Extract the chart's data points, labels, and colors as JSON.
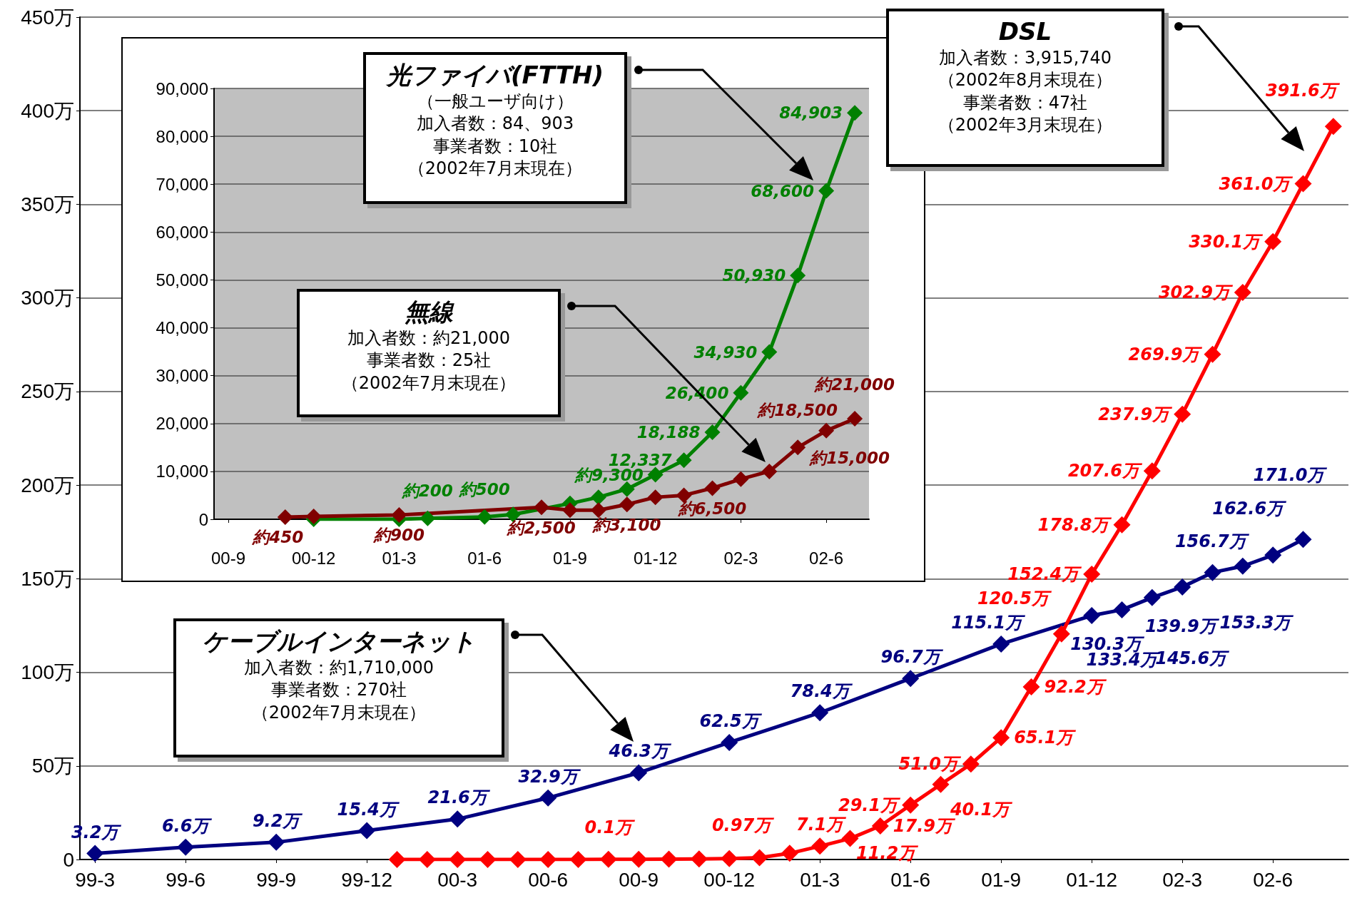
{
  "chart_data": [
    {
      "type": "line",
      "categories": [
        "99-3",
        null,
        null,
        "99-6",
        null,
        null,
        "99-9",
        null,
        null,
        "99-12",
        null,
        null,
        "00-3",
        null,
        null,
        "00-6",
        null,
        null,
        "00-9",
        null,
        null,
        "00-12",
        null,
        null,
        "01-3",
        null,
        null,
        "01-6",
        null,
        null,
        "01-9",
        null,
        null,
        "01-12",
        null,
        null,
        "02-3",
        null,
        null,
        "02-6",
        null,
        null
      ],
      "series": [
        {
          "color": "#000080",
          "values": [
            3.2,
            null,
            null,
            6.6,
            null,
            null,
            9.2,
            null,
            null,
            15.4,
            null,
            null,
            21.6,
            null,
            null,
            32.9,
            null,
            null,
            46.3,
            null,
            null,
            62.5,
            null,
            null,
            78.4,
            null,
            null,
            96.7,
            null,
            null,
            115.1,
            null,
            null,
            130.3,
            133.4,
            139.9,
            145.6,
            153.3,
            156.7,
            162.6,
            171.0,
            null
          ],
          "value_labels": [
            "3.2万",
            null,
            null,
            "6.6万",
            null,
            null,
            "9.2万",
            null,
            null,
            "15.4万",
            null,
            null,
            "21.6万",
            null,
            null,
            "32.9万",
            null,
            null,
            "46.3万",
            null,
            null,
            "62.5万",
            null,
            null,
            "78.4万",
            null,
            null,
            "96.7万",
            null,
            null,
            "115.1万",
            null,
            null,
            "130.3万",
            "133.4万",
            "139.9万",
            "145.6万",
            "153.3万",
            "156.7万",
            "162.6万",
            "171.0万",
            null
          ]
        },
        {
          "color": "#ff0000",
          "values": [
            null,
            null,
            null,
            null,
            null,
            null,
            null,
            null,
            null,
            null,
            0,
            0,
            0,
            0,
            0,
            0,
            0,
            0.1,
            0.1,
            0.2,
            0.3,
            0.5,
            0.97,
            3.3,
            7.1,
            11.2,
            17.9,
            29.1,
            40.1,
            51.0,
            65.1,
            92.2,
            120.5,
            152.4,
            178.8,
            207.6,
            237.9,
            269.9,
            302.9,
            330.1,
            361.0,
            391.6
          ],
          "value_labels": [
            null,
            null,
            null,
            null,
            null,
            null,
            null,
            null,
            null,
            null,
            null,
            null,
            null,
            null,
            null,
            null,
            null,
            "0.1万",
            null,
            null,
            null,
            null,
            "0.97万",
            null,
            "7.1万",
            "11.2万",
            "17.9万",
            "29.1万",
            "40.1万",
            "51.0万",
            "65.1万",
            "92.2万",
            "120.5万",
            "152.4万",
            "178.8万",
            "207.6万",
            "237.9万",
            "269.9万",
            "302.9万",
            "330.1万",
            "361.0万",
            "391.6万"
          ]
        }
      ],
      "ylim": [
        0,
        450
      ],
      "yticks": [
        0,
        {
          "value": 50,
          "label": "50万"
        },
        {
          "value": 100,
          "label": "100万"
        },
        {
          "value": 150,
          "label": "150万"
        },
        {
          "value": 200,
          "label": "200万"
        },
        {
          "value": 250,
          "label": "250万"
        },
        {
          "value": 300,
          "label": "300万"
        },
        {
          "value": 350,
          "label": "350万"
        },
        {
          "value": 400,
          "label": "400万"
        },
        {
          "value": 450,
          "label": "450万"
        }
      ],
      "grid": "y",
      "marker": "diamond",
      "line_style": "solid",
      "annotations": [
        "DSL",
        "加入者数：3,915,740",
        "（2002年8月末現在）",
        "事業者数：47社",
        "（2002年3月末現在）",
        "ケーブルインターネット",
        "加入者数：約1,710,000",
        "事業者数：270社",
        "（2002年7月末現在）"
      ]
    },
    {
      "type": "line",
      "categories": [
        "00-9",
        null,
        null,
        "00-12",
        null,
        null,
        "01-3",
        null,
        null,
        "01-6",
        null,
        null,
        "01-9",
        null,
        null,
        "01-12",
        null,
        null,
        "02-3",
        null,
        null,
        "02-6",
        null
      ],
      "series": [
        {
          "color": "#008000",
          "values": [
            null,
            null,
            null,
            0,
            null,
            null,
            0,
            200,
            null,
            500,
            1000,
            null,
            3300,
            4600,
            6300,
            9300,
            12337,
            18188,
            26400,
            34930,
            50930,
            68600,
            84903
          ],
          "value_labels": [
            null,
            null,
            null,
            null,
            null,
            null,
            null,
            "約200",
            null,
            "約500",
            null,
            null,
            null,
            null,
            null,
            "約9,300",
            "12,337",
            "18,188",
            "26,400",
            "34,930",
            "50,930",
            "68,600",
            "84,903"
          ]
        },
        {
          "color": "#800000",
          "values": [
            null,
            null,
            450,
            600,
            null,
            null,
            900,
            null,
            null,
            null,
            null,
            2500,
            1900,
            1900,
            3100,
            4600,
            5000,
            6500,
            8400,
            10000,
            15000,
            18500,
            21000
          ],
          "value_labels": [
            null,
            null,
            "約450",
            null,
            null,
            null,
            "約900",
            null,
            null,
            null,
            null,
            "約2,500",
            null,
            null,
            "約3,100",
            null,
            null,
            "約6,500",
            null,
            null,
            "約15,000",
            "約18,500",
            "約21,000"
          ]
        }
      ],
      "ylim": [
        0,
        90000
      ],
      "yticks": [
        0,
        {
          "value": 10000,
          "label": "10,000"
        },
        {
          "value": 20000,
          "label": "20,000"
        },
        {
          "value": 30000,
          "label": "30,000"
        },
        {
          "value": 40000,
          "label": "40,000"
        },
        {
          "value": 50000,
          "label": "50,000"
        },
        {
          "value": 60000,
          "label": "60,000"
        },
        {
          "value": 70000,
          "label": "70,000"
        },
        {
          "value": 80000,
          "label": "80,000"
        },
        {
          "value": 90000,
          "label": "90,000"
        }
      ],
      "grid": "y",
      "marker": "diamond",
      "line_style": "solid",
      "annotations": [
        "光ファイバ(FTTH)",
        "（一般ユーザ向け）",
        "加入者数：84、903",
        "事業者数：10社",
        "（2002年7月末現在）",
        "無線",
        "加入者数：約21,000",
        "事業者数：25社",
        "（2002年7月末現在）"
      ]
    }
  ]
}
